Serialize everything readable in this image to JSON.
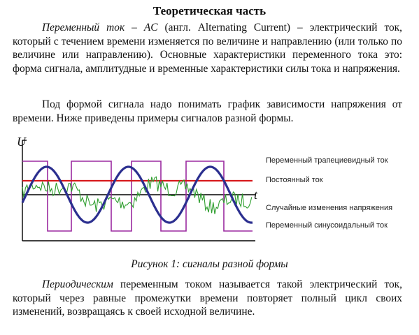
{
  "heading": "Теоретическая часть",
  "para1": {
    "lead": "Переменный ток – AC",
    "rest": " (англ. Alternating Current) – электрический ток, который с течением времени изменяется по величине и направлению (или только по величине или направлению). Основные характеристики переменного тока это: форма сигнала, амплитудные и временные характеристики силы тока и напряжения."
  },
  "para2": "Под формой сигнала надо понимать график зависимости напряжения от времени. Ниже приведены примеры сигналов разной формы.",
  "figure": {
    "y_axis_label": "U",
    "x_axis_label": "t",
    "legend": [
      "Переменный трапециевидный ток",
      "Постоянный ток",
      "Случайные изменения  напряжения",
      "Переменный синусоидальный ток"
    ],
    "colors": {
      "trapezoid": "#9b2aa0",
      "dc": "#d7191c",
      "noise": "#2e9e2e",
      "sine": "#2b2f8f",
      "axis": "#000000"
    }
  },
  "caption": "Рисунок 1: сигналы разной формы",
  "para3": {
    "lead": "Периодическим",
    "rest": " переменным током называется такой электрический ток, который через равные промежутки времени повторяет полный цикл своих изменений, возвращаясь к своей исходной величине."
  }
}
